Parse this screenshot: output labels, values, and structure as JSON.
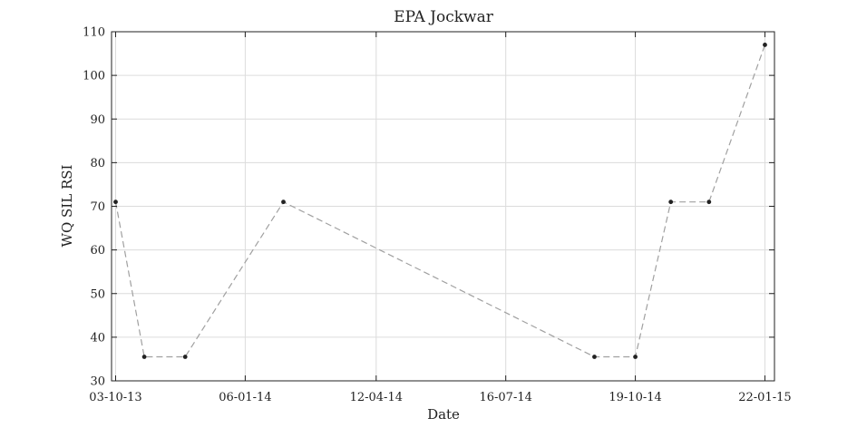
{
  "chart_data": {
    "type": "line",
    "title": "EPA Jockwar",
    "xlabel": "Date",
    "ylabel": "WQ SIL RSI",
    "x_type": "date",
    "xlim": [
      "2013-09-30",
      "2015-01-29"
    ],
    "ylim": [
      30,
      110
    ],
    "x_ticks": [
      {
        "date": "2013-10-03",
        "label": "03-10-13"
      },
      {
        "date": "2014-01-06",
        "label": "06-01-14"
      },
      {
        "date": "2014-04-12",
        "label": "12-04-14"
      },
      {
        "date": "2014-07-16",
        "label": "16-07-14"
      },
      {
        "date": "2014-10-19",
        "label": "19-10-14"
      },
      {
        "date": "2015-01-22",
        "label": "22-01-15"
      }
    ],
    "y_ticks": [
      30,
      40,
      50,
      60,
      70,
      80,
      90,
      100,
      110
    ],
    "grid": true,
    "line_style": "dashed",
    "line_color": "#a0a0a0",
    "marker_color": "#222222",
    "series": [
      {
        "x": [
          "2013-10-03",
          "2013-10-24",
          "2013-11-23",
          "2014-02-03",
          "2014-09-19",
          "2014-10-19",
          "2014-11-14",
          "2014-12-12",
          "2015-01-22"
        ],
        "y": [
          71,
          35.5,
          35.5,
          71,
          35.5,
          35.5,
          71,
          71,
          107
        ]
      }
    ]
  }
}
